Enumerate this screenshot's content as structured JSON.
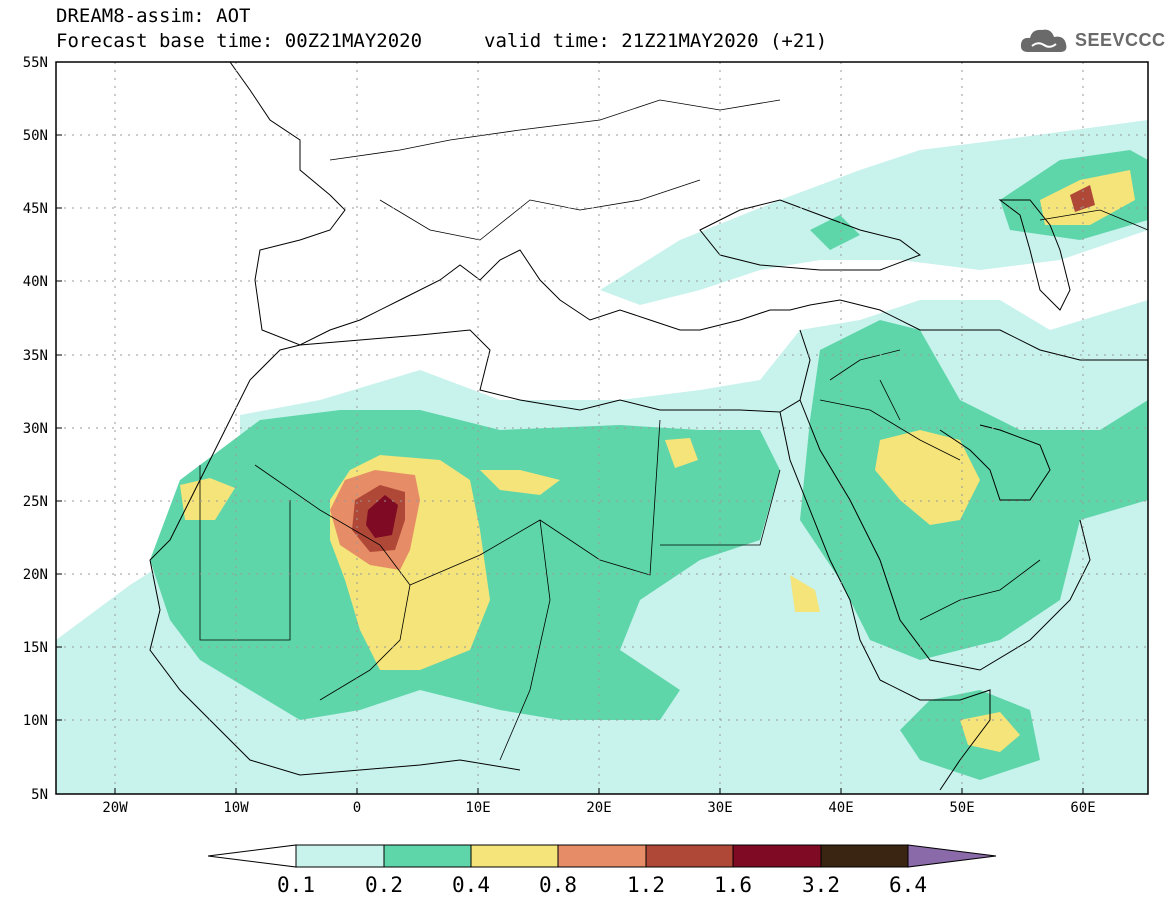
{
  "header": {
    "line1": "DREAM8-assim: AOT",
    "line2": "Forecast base time: 00Z21MAY2020",
    "line3": "valid time: 21Z21MAY2020 (+21)",
    "logo_text": "SEEVCCC",
    "logo_icon": "cloud-icon"
  },
  "map": {
    "lon_labels": [
      "20W",
      "10W",
      "0",
      "10E",
      "20E",
      "30E",
      "40E",
      "50E",
      "60E"
    ],
    "lat_labels": [
      "55N",
      "50N",
      "45N",
      "40N",
      "35N",
      "30N",
      "25N",
      "20N",
      "15N",
      "10N",
      "5N"
    ],
    "field": "AOT"
  },
  "colorbar": {
    "labels": [
      "0.1",
      "0.2",
      "0.4",
      "0.8",
      "1.2",
      "1.6",
      "3.2",
      "6.4"
    ],
    "colors": [
      "#c8f2ec",
      "#5ed6aa",
      "#f4e47a",
      "#e68c66",
      "#b04838",
      "#7e0a24",
      "#3a2412",
      "#8a6aa8"
    ]
  }
}
